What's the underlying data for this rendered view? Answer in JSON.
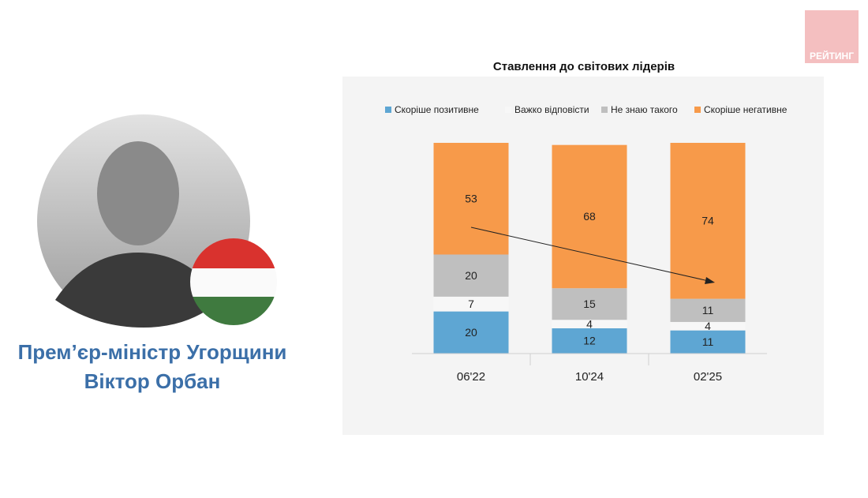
{
  "logo": "РЕЙТИНГ",
  "caption": [
    "Прем’єр-міністр Угорщини",
    "Віктор Орбан"
  ],
  "chart_data": {
    "type": "stacked-bar",
    "title": "Ставлення до світових лідерів",
    "categories": [
      "06'22",
      "10'24",
      "02'25"
    ],
    "legend": "top",
    "series": [
      {
        "name": "Скоріше позитивне",
        "color": "#5ea6d3",
        "values": [
          20,
          12,
          11
        ]
      },
      {
        "name": "Важко відповісти",
        "color": "#f7f7f7",
        "values": [
          7,
          4,
          4
        ]
      },
      {
        "name": "Не знаю такого",
        "color": "#bfbfbf",
        "values": [
          20,
          15,
          11
        ]
      },
      {
        "name": "Скоріше негативне",
        "color": "#f79a4a",
        "values": [
          53,
          68,
          74
        ]
      }
    ]
  }
}
